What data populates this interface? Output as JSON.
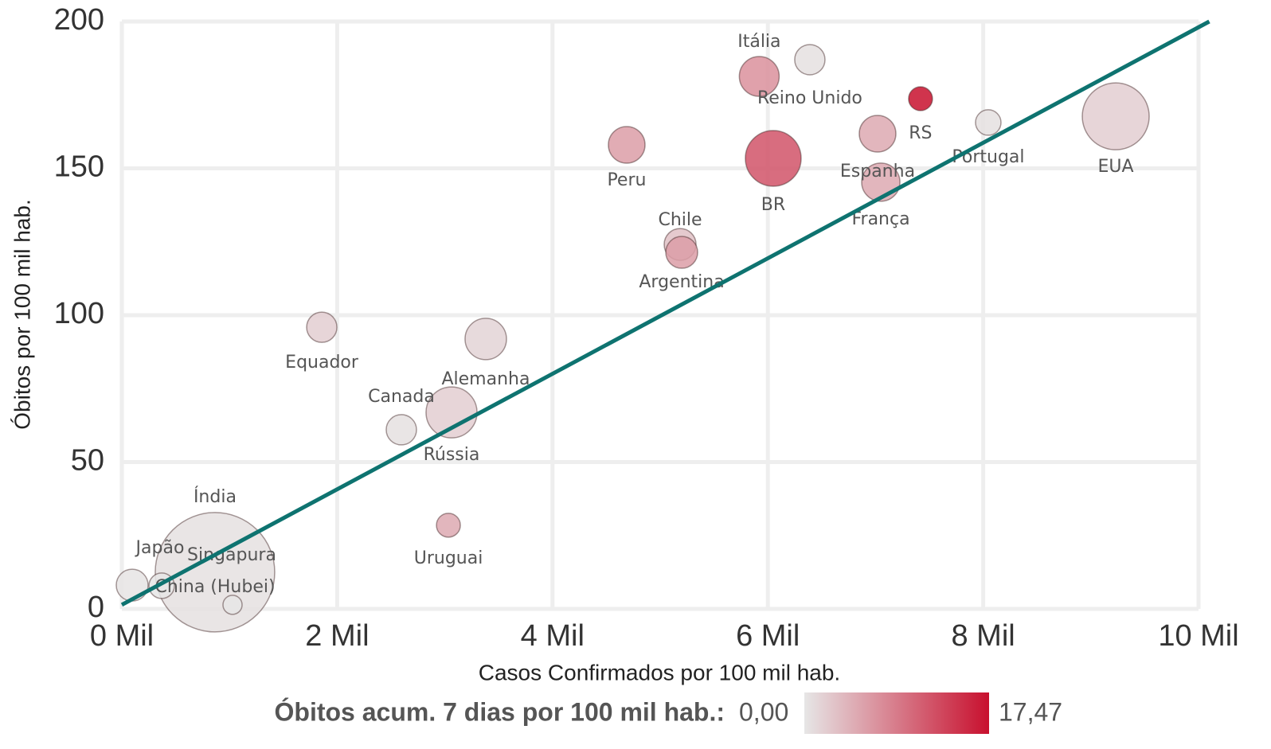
{
  "chart_data": {
    "type": "scatter",
    "xlabel": "Casos Confirmados por 100 mil hab.",
    "ylabel": "Óbitos por 100 mil hab.",
    "xlim": [
      0,
      10000
    ],
    "ylim": [
      0,
      200
    ],
    "xticks": [
      {
        "value": 0,
        "label": "0 Mil"
      },
      {
        "value": 2000,
        "label": "2 Mil"
      },
      {
        "value": 4000,
        "label": "4 Mil"
      },
      {
        "value": 6000,
        "label": "6 Mil"
      },
      {
        "value": 8000,
        "label": "8 Mil"
      },
      {
        "value": 10000,
        "label": "10 Mil"
      }
    ],
    "yticks": [
      0,
      50,
      100,
      150,
      200
    ],
    "grid": true,
    "labels": [
      "Itália",
      "Reino Unido",
      "RS",
      "Espanha",
      "Portugal",
      "EUA",
      "Peru",
      "BR",
      "França",
      "Chile",
      "Argentina",
      "Equador",
      "Alemanha",
      "Canada",
      "Rússia",
      "Uruguai",
      "Índia",
      "Japão",
      "China (Hubei)",
      "Singapura"
    ],
    "x": [
      5920,
      6390,
      7418,
      7019,
      8047,
      9231,
      4689,
      6050,
      7049,
      5185,
      5200,
      1857,
      3380,
      2596,
      3062,
      3033,
      865,
      96,
      370,
      1028
    ],
    "y": [
      181.3,
      187,
      173.7,
      161.8,
      165.6,
      167.7,
      158,
      153.4,
      145.3,
      124.1,
      121.4,
      95.9,
      91.9,
      61,
      66.9,
      28.5,
      12.5,
      8.1,
      7.9,
      1.4
    ],
    "sizes": [
      25,
      19,
      15,
      23,
      16,
      42,
      23,
      35,
      24,
      20,
      20,
      19,
      26,
      19,
      32,
      15,
      75,
      20,
      16,
      12
    ],
    "color_values": [
      7,
      0.5,
      17.47,
      5,
      0.5,
      2,
      6,
      12,
      5,
      3,
      6,
      2,
      1.5,
      0.5,
      2,
      5,
      0.5,
      0.2,
      0,
      0
    ],
    "color_scale": {
      "title": "Óbitos acum. 7 dias por 100 mil hab.:",
      "min": {
        "value": 0,
        "label": "0,00"
      },
      "max": {
        "value": 17.47,
        "label": "17,47"
      },
      "colors": [
        "#e6e6e6",
        "#c8102e"
      ]
    },
    "trend_line": {
      "color": "#0e7370",
      "x": [
        0,
        10100
      ],
      "y": [
        1.4,
        200
      ]
    }
  }
}
